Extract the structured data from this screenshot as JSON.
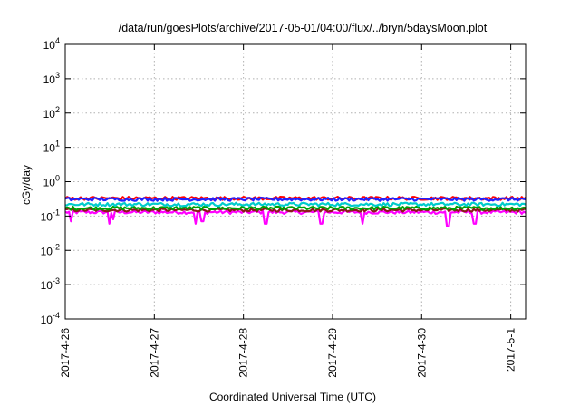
{
  "chart_data": {
    "type": "line",
    "title": "/data/run/goesPlots/archive/2017-05-01/04:00/flux/../bryn/5daysMoon.plot",
    "xlabel": "Coordinated Universal Time (UTC)",
    "ylabel": "cGy/day",
    "yscale": "log",
    "ylim": [
      0.0001,
      10000
    ],
    "y_ticks": [
      {
        "value": 0.0001,
        "base": "10",
        "exp": "-4"
      },
      {
        "value": 0.001,
        "base": "10",
        "exp": "-3"
      },
      {
        "value": 0.01,
        "base": "10",
        "exp": "-2"
      },
      {
        "value": 0.1,
        "base": "10",
        "exp": "-1"
      },
      {
        "value": 1,
        "base": "10",
        "exp": "0"
      },
      {
        "value": 10,
        "base": "10",
        "exp": "1"
      },
      {
        "value": 100,
        "base": "10",
        "exp": "2"
      },
      {
        "value": 1000,
        "base": "10",
        "exp": "3"
      },
      {
        "value": 10000,
        "base": "10",
        "exp": "4"
      }
    ],
    "xlim": [
      "2017-04-26 00:00",
      "2017-05-01 04:00"
    ],
    "x_tick_labels": [
      "2017-4-26",
      "2017-4-27",
      "2017-4-28",
      "2017-4-29",
      "2017-4-30",
      "2017-5-1"
    ],
    "grid": true,
    "legend": "none",
    "series": [
      {
        "color": "#ff00ff",
        "baseline": 0.13,
        "dips": [
          {
            "x": "2017-04-26 01:30",
            "y": 0.07
          },
          {
            "x": "2017-04-26 12:00",
            "y": 0.06
          },
          {
            "x": "2017-04-26 13:00",
            "y": 0.08
          },
          {
            "x": "2017-04-27 11:00",
            "y": 0.06
          },
          {
            "x": "2017-04-27 13:00",
            "y": 0.07
          },
          {
            "x": "2017-04-28 06:00",
            "y": 0.06
          },
          {
            "x": "2017-04-28 21:00",
            "y": 0.06
          },
          {
            "x": "2017-04-29 08:00",
            "y": 0.06
          },
          {
            "x": "2017-04-30 07:00",
            "y": 0.05
          },
          {
            "x": "2017-04-30 14:00",
            "y": 0.06
          },
          {
            "x": "2017-04-30 14:40",
            "y": 0.06
          }
        ]
      },
      {
        "color": "#8b1a1a",
        "baseline": 0.15
      },
      {
        "color": "#00a000",
        "baseline": 0.17
      },
      {
        "color": "#00cccc",
        "baseline": 0.22
      },
      {
        "color": "#ff0000",
        "baseline": 0.33
      },
      {
        "color": "#2020ff",
        "baseline": 0.31
      }
    ]
  }
}
